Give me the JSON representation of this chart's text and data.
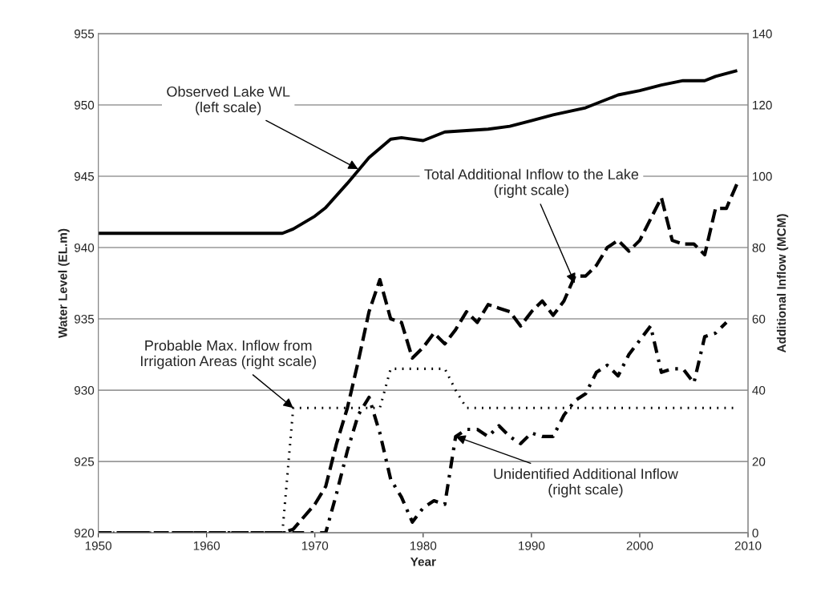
{
  "chart_data": {
    "type": "line",
    "xlabel": "Year",
    "ylabel": "Water Level (EL.m)",
    "y2label": "Additional Inflow (MCM)",
    "xlim": [
      1950,
      2010
    ],
    "xticks": [
      1950,
      1960,
      1970,
      1980,
      1990,
      2000,
      2010
    ],
    "ylim": [
      920,
      955
    ],
    "yticks": [
      920,
      925,
      930,
      935,
      940,
      945,
      950,
      955
    ],
    "y2lim": [
      0,
      140
    ],
    "y2ticks": [
      0,
      20,
      40,
      60,
      80,
      100,
      120,
      140
    ],
    "grid": "y",
    "series": [
      {
        "color": "#000000",
        "line_style": "solid",
        "x": [
          1950,
          1967,
          1968,
          1970,
          1971,
          1973,
          1975,
          1977,
          1978,
          1980,
          1982,
          1984,
          1986,
          1988,
          1990,
          1992,
          1995,
          1998,
          2000,
          2002,
          2004,
          2006,
          2007,
          2009
        ],
        "values": [
          941,
          941,
          941.3,
          942.2,
          942.8,
          944.5,
          946.3,
          947.6,
          947.7,
          947.5,
          948.1,
          948.2,
          948.3,
          948.5,
          948.9,
          949.3,
          949.8,
          950.7,
          951,
          951.4,
          951.7,
          951.7,
          952,
          952.4
        ]
      },
      {
        "color": "#000000",
        "line_style": "dashed",
        "axis": "y2",
        "x": [
          1950,
          1967,
          1968,
          1970,
          1971,
          1972,
          1973,
          1974,
          1975,
          1976,
          1977,
          1978,
          1979,
          1980,
          1981,
          1982,
          1983,
          1984,
          1985,
          1986,
          1987,
          1988,
          1989,
          1990,
          1991,
          1992,
          1993,
          1994,
          1995,
          1996,
          1997,
          1998,
          1999,
          2000,
          2001,
          2002,
          2003,
          2004,
          2005,
          2006,
          2007,
          2008,
          2009
        ],
        "values": [
          0,
          0,
          1,
          8,
          13,
          25,
          35,
          48,
          62,
          71,
          60,
          59,
          49,
          52,
          56,
          53,
          57,
          62,
          59,
          64,
          63,
          62,
          58,
          62,
          65,
          61,
          65,
          72,
          72,
          75,
          80,
          82,
          79,
          82,
          88,
          94,
          82,
          81,
          81,
          78,
          91,
          91,
          98
        ]
      },
      {
        "color": "#000000",
        "line_style": "dashdot",
        "axis": "y2",
        "x": [
          1950,
          1971,
          1972,
          1973,
          1974,
          1975,
          1976,
          1977,
          1978,
          1979,
          1980,
          1981,
          1982,
          1983,
          1984,
          1985,
          1986,
          1987,
          1988,
          1989,
          1990,
          1991,
          1992,
          1993,
          1994,
          1995,
          1996,
          1997,
          1998,
          1999,
          2000,
          2001,
          2002,
          2003,
          2004,
          2005,
          2006,
          2007,
          2008
        ],
        "values": [
          0,
          0,
          11,
          23,
          33,
          38,
          28,
          15,
          10,
          3,
          7,
          9,
          8,
          27,
          29,
          29,
          27,
          30,
          27,
          25,
          28,
          27,
          27,
          33,
          37,
          39,
          45,
          47,
          44,
          50,
          54,
          58,
          45,
          46,
          46,
          42,
          55,
          56,
          59
        ]
      },
      {
        "color": "#000000",
        "line_style": "dotted",
        "axis": "y2",
        "x": [
          1950,
          1967,
          1968,
          1976,
          1977,
          1982,
          1983,
          1984,
          2009
        ],
        "values": [
          0,
          0,
          35,
          35,
          46,
          46,
          40,
          35,
          35
        ]
      }
    ],
    "annotations": [
      {
        "text": "Observed Lake WL\n(left scale)",
        "x": 1974,
        "y": 945.5
      },
      {
        "text": "Total Additional Inflow to the Lake\n(right scale)",
        "x": 1994,
        "y": 937.5
      },
      {
        "text": "Probable Max. Inflow from\nIrrigation Areas (right scale)",
        "x": 1968,
        "y": 928.75
      },
      {
        "text": "Unidentified Additional Inflow\n(right scale)",
        "x": 1983,
        "y": 926.75
      }
    ]
  }
}
